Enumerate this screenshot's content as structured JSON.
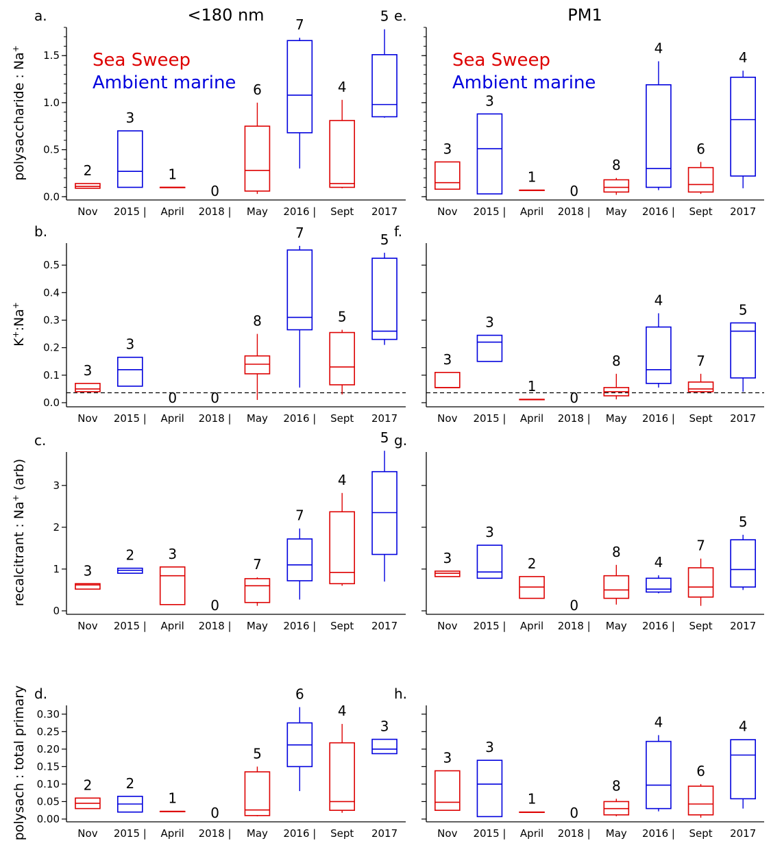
{
  "colors": {
    "sea_sweep": "#dd0000",
    "ambient_marine": "#0000dd"
  },
  "chart_data": [
    {
      "id": "a",
      "type": "box",
      "letter": "a.",
      "column_title": "<180 nm",
      "ylabel": "polysaccharide : Na+",
      "ylim": [
        -0.02,
        1.8
      ],
      "yticks": [
        0.0,
        0.5,
        1.0,
        1.5
      ],
      "ytick_labels": [
        "0.0",
        "0.5",
        "1.0",
        "1.5"
      ],
      "minor_ticks": true,
      "ref_line": null,
      "legend": {
        "show": true,
        "entries": [
          "Sea Sweep",
          "Ambient marine"
        ],
        "placement": "top-left"
      },
      "categories": [
        "Nov",
        "2015 |",
        "April",
        "2018 |",
        "May",
        "2016 |",
        "Sept",
        "2017"
      ],
      "boxes": [
        {
          "series": "Sea Sweep",
          "count": "2",
          "whisker_low": 0.09,
          "q1": 0.09,
          "median": 0.11,
          "q3": 0.14,
          "whisker_high": 0.14
        },
        {
          "series": "Ambient marine",
          "count": "3",
          "whisker_low": 0.1,
          "q1": 0.1,
          "median": 0.27,
          "q3": 0.7,
          "whisker_high": 0.7
        },
        {
          "series": "Sea Sweep",
          "count": "1",
          "whisker_low": 0.1,
          "q1": 0.1,
          "median": 0.1,
          "q3": 0.1,
          "whisker_high": 0.1
        },
        {
          "series": "Ambient marine",
          "count": "0",
          "whisker_low": null,
          "q1": null,
          "median": null,
          "q3": null,
          "whisker_high": null
        },
        {
          "series": "Sea Sweep",
          "count": "6",
          "whisker_low": 0.03,
          "q1": 0.06,
          "median": 0.28,
          "q3": 0.75,
          "whisker_high": 1.0
        },
        {
          "series": "Ambient marine",
          "count": "7",
          "whisker_low": 0.3,
          "q1": 0.68,
          "median": 1.08,
          "q3": 1.66,
          "whisker_high": 1.69
        },
        {
          "series": "Sea Sweep",
          "count": "4",
          "whisker_low": 0.09,
          "q1": 0.1,
          "median": 0.14,
          "q3": 0.81,
          "whisker_high": 1.03
        },
        {
          "series": "Ambient marine",
          "count": "5",
          "whisker_low": 0.84,
          "q1": 0.85,
          "median": 0.98,
          "q3": 1.51,
          "whisker_high": 1.78
        }
      ]
    },
    {
      "id": "e",
      "type": "box",
      "letter": "e.",
      "column_title": "PM1",
      "ylabel": "",
      "ylim": [
        -0.02,
        1.8
      ],
      "yticks": [
        0.0,
        0.5,
        1.0,
        1.5
      ],
      "ytick_labels": [],
      "minor_ticks": true,
      "ref_line": null,
      "legend": {
        "show": true,
        "entries": [
          "Sea Sweep",
          "Ambient marine"
        ],
        "placement": "top-left"
      },
      "categories": [
        "Nov",
        "2015 |",
        "April",
        "2018 |",
        "May",
        "2016 |",
        "Sept",
        "2017"
      ],
      "boxes": [
        {
          "series": "Sea Sweep",
          "count": "3",
          "whisker_low": 0.08,
          "q1": 0.08,
          "median": 0.15,
          "q3": 0.37,
          "whisker_high": 0.37
        },
        {
          "series": "Ambient marine",
          "count": "3",
          "whisker_low": 0.03,
          "q1": 0.03,
          "median": 0.51,
          "q3": 0.88,
          "whisker_high": 0.88
        },
        {
          "series": "Sea Sweep",
          "count": "1",
          "whisker_low": 0.07,
          "q1": 0.07,
          "median": 0.07,
          "q3": 0.07,
          "whisker_high": 0.07
        },
        {
          "series": "Ambient marine",
          "count": "0",
          "whisker_low": null,
          "q1": null,
          "median": null,
          "q3": null,
          "whisker_high": null
        },
        {
          "series": "Sea Sweep",
          "count": "8",
          "whisker_low": 0.02,
          "q1": 0.05,
          "median": 0.1,
          "q3": 0.18,
          "whisker_high": 0.2
        },
        {
          "series": "Ambient marine",
          "count": "4",
          "whisker_low": 0.07,
          "q1": 0.1,
          "median": 0.3,
          "q3": 1.19,
          "whisker_high": 1.44
        },
        {
          "series": "Sea Sweep",
          "count": "6",
          "whisker_low": 0.03,
          "q1": 0.05,
          "median": 0.13,
          "q3": 0.31,
          "whisker_high": 0.37
        },
        {
          "series": "Ambient marine",
          "count": "4",
          "whisker_low": 0.09,
          "q1": 0.22,
          "median": 0.82,
          "q3": 1.27,
          "whisker_high": 1.34
        }
      ]
    },
    {
      "id": "b",
      "type": "box",
      "letter": "b.",
      "column_title": "",
      "ylabel": "K+:Na+",
      "ylim": [
        -0.01,
        0.58
      ],
      "yticks": [
        0.0,
        0.1,
        0.2,
        0.3,
        0.4,
        0.5
      ],
      "ytick_labels": [
        "0.0",
        "0.1",
        "0.2",
        "0.3",
        "0.4",
        "0.5"
      ],
      "minor_ticks": false,
      "ref_line": 0.036,
      "legend": {
        "show": false,
        "entries": [],
        "placement": ""
      },
      "categories": [
        "Nov",
        "2015 |",
        "April",
        "2018 |",
        "May",
        "2016 |",
        "Sept",
        "2017"
      ],
      "boxes": [
        {
          "series": "Sea Sweep",
          "count": "3",
          "whisker_low": 0.04,
          "q1": 0.04,
          "median": 0.05,
          "q3": 0.07,
          "whisker_high": 0.07
        },
        {
          "series": "Ambient marine",
          "count": "3",
          "whisker_low": 0.06,
          "q1": 0.06,
          "median": 0.12,
          "q3": 0.165,
          "whisker_high": 0.165
        },
        {
          "series": "Sea Sweep",
          "count": "0",
          "whisker_low": null,
          "q1": null,
          "median": null,
          "q3": null,
          "whisker_high": null
        },
        {
          "series": "Ambient marine",
          "count": "0",
          "whisker_low": null,
          "q1": null,
          "median": null,
          "q3": null,
          "whisker_high": null
        },
        {
          "series": "Sea Sweep",
          "count": "8",
          "whisker_low": 0.01,
          "q1": 0.105,
          "median": 0.14,
          "q3": 0.17,
          "whisker_high": 0.25
        },
        {
          "series": "Ambient marine",
          "count": "7",
          "whisker_low": 0.055,
          "q1": 0.265,
          "median": 0.31,
          "q3": 0.555,
          "whisker_high": 0.57
        },
        {
          "series": "Sea Sweep",
          "count": "5",
          "whisker_low": 0.03,
          "q1": 0.065,
          "median": 0.13,
          "q3": 0.255,
          "whisker_high": 0.265
        },
        {
          "series": "Ambient marine",
          "count": "5",
          "whisker_low": 0.21,
          "q1": 0.23,
          "median": 0.26,
          "q3": 0.525,
          "whisker_high": 0.545
        }
      ]
    },
    {
      "id": "f",
      "type": "box",
      "letter": "f.",
      "column_title": "",
      "ylabel": "",
      "ylim": [
        -0.01,
        0.58
      ],
      "yticks": [
        0.0,
        0.1,
        0.2,
        0.3,
        0.4,
        0.5
      ],
      "ytick_labels": [],
      "minor_ticks": false,
      "ref_line": 0.036,
      "legend": {
        "show": false,
        "entries": [],
        "placement": ""
      },
      "categories": [
        "Nov",
        "2015 |",
        "April",
        "2018 |",
        "May",
        "2016 |",
        "Sept",
        "2017"
      ],
      "boxes": [
        {
          "series": "Sea Sweep",
          "count": "3",
          "whisker_low": 0.055,
          "q1": 0.055,
          "median": 0.055,
          "q3": 0.11,
          "whisker_high": 0.11
        },
        {
          "series": "Ambient marine",
          "count": "3",
          "whisker_low": 0.15,
          "q1": 0.15,
          "median": 0.22,
          "q3": 0.245,
          "whisker_high": 0.245
        },
        {
          "series": "Sea Sweep",
          "count": "1",
          "whisker_low": 0.012,
          "q1": 0.012,
          "median": 0.012,
          "q3": 0.012,
          "whisker_high": 0.012
        },
        {
          "series": "Ambient marine",
          "count": "0",
          "whisker_low": null,
          "q1": null,
          "median": null,
          "q3": null,
          "whisker_high": null
        },
        {
          "series": "Sea Sweep",
          "count": "8",
          "whisker_low": 0.012,
          "q1": 0.025,
          "median": 0.04,
          "q3": 0.055,
          "whisker_high": 0.105
        },
        {
          "series": "Ambient marine",
          "count": "4",
          "whisker_low": 0.055,
          "q1": 0.07,
          "median": 0.12,
          "q3": 0.275,
          "whisker_high": 0.325
        },
        {
          "series": "Sea Sweep",
          "count": "7",
          "whisker_low": 0.035,
          "q1": 0.04,
          "median": 0.05,
          "q3": 0.075,
          "whisker_high": 0.105
        },
        {
          "series": "Ambient marine",
          "count": "5",
          "whisker_low": 0.04,
          "q1": 0.09,
          "median": 0.26,
          "q3": 0.29,
          "whisker_high": 0.29
        }
      ]
    },
    {
      "id": "c",
      "type": "box",
      "letter": "c.",
      "column_title": "",
      "ylabel": "recalcitrant : Na+ (arb)",
      "ylim": [
        -0.05,
        3.8
      ],
      "yticks": [
        0,
        1,
        2,
        3
      ],
      "ytick_labels": [
        "0",
        "1",
        "2",
        "3"
      ],
      "minor_ticks": false,
      "ref_line": null,
      "legend": {
        "show": false,
        "entries": [],
        "placement": ""
      },
      "categories": [
        "Nov",
        "2015 |",
        "April",
        "2018 |",
        "May",
        "2016 |",
        "Sept",
        "2017"
      ],
      "boxes": [
        {
          "series": "Sea Sweep",
          "count": "3",
          "whisker_low": 0.52,
          "q1": 0.52,
          "median": 0.62,
          "q3": 0.65,
          "whisker_high": 0.65
        },
        {
          "series": "Ambient marine",
          "count": "2",
          "whisker_low": 0.9,
          "q1": 0.9,
          "median": 0.97,
          "q3": 1.02,
          "whisker_high": 1.02
        },
        {
          "series": "Sea Sweep",
          "count": "3",
          "whisker_low": 0.15,
          "q1": 0.15,
          "median": 0.84,
          "q3": 1.05,
          "whisker_high": 1.05
        },
        {
          "series": "Ambient marine",
          "count": "0",
          "whisker_low": null,
          "q1": null,
          "median": null,
          "q3": null,
          "whisker_high": null
        },
        {
          "series": "Sea Sweep",
          "count": "7",
          "whisker_low": 0.12,
          "q1": 0.2,
          "median": 0.6,
          "q3": 0.77,
          "whisker_high": 0.8
        },
        {
          "series": "Ambient marine",
          "count": "7",
          "whisker_low": 0.27,
          "q1": 0.72,
          "median": 1.1,
          "q3": 1.72,
          "whisker_high": 1.97
        },
        {
          "series": "Sea Sweep",
          "count": "4",
          "whisker_low": 0.6,
          "q1": 0.65,
          "median": 0.92,
          "q3": 2.37,
          "whisker_high": 2.82
        },
        {
          "series": "Ambient marine",
          "count": "5",
          "whisker_low": 0.7,
          "q1": 1.35,
          "median": 2.35,
          "q3": 3.33,
          "whisker_high": 3.83
        }
      ]
    },
    {
      "id": "g",
      "type": "box",
      "letter": "g.",
      "column_title": "",
      "ylabel": "",
      "ylim": [
        -0.05,
        3.8
      ],
      "yticks": [
        0,
        1,
        2,
        3
      ],
      "ytick_labels": [],
      "minor_ticks": false,
      "ref_line": null,
      "legend": {
        "show": false,
        "entries": [],
        "placement": ""
      },
      "categories": [
        "Nov",
        "2015 |",
        "April",
        "2018 |",
        "May",
        "2016 |",
        "Sept",
        "2017"
      ],
      "boxes": [
        {
          "series": "Sea Sweep",
          "count": "3",
          "whisker_low": 0.82,
          "q1": 0.82,
          "median": 0.9,
          "q3": 0.95,
          "whisker_high": 0.95
        },
        {
          "series": "Ambient marine",
          "count": "3",
          "whisker_low": 0.78,
          "q1": 0.78,
          "median": 0.93,
          "q3": 1.57,
          "whisker_high": 1.57
        },
        {
          "series": "Sea Sweep",
          "count": "2",
          "whisker_low": 0.3,
          "q1": 0.3,
          "median": 0.57,
          "q3": 0.82,
          "whisker_high": 0.82
        },
        {
          "series": "Ambient marine",
          "count": "0",
          "whisker_low": null,
          "q1": null,
          "median": null,
          "q3": null,
          "whisker_high": null
        },
        {
          "series": "Sea Sweep",
          "count": "8",
          "whisker_low": 0.15,
          "q1": 0.3,
          "median": 0.5,
          "q3": 0.84,
          "whisker_high": 1.1
        },
        {
          "series": "Ambient marine",
          "count": "4",
          "whisker_low": 0.42,
          "q1": 0.45,
          "median": 0.52,
          "q3": 0.78,
          "whisker_high": 0.85
        },
        {
          "series": "Sea Sweep",
          "count": "7",
          "whisker_low": 0.12,
          "q1": 0.33,
          "median": 0.57,
          "q3": 1.03,
          "whisker_high": 1.25
        },
        {
          "series": "Ambient marine",
          "count": "5",
          "whisker_low": 0.5,
          "q1": 0.57,
          "median": 0.99,
          "q3": 1.7,
          "whisker_high": 1.82
        }
      ]
    },
    {
      "id": "d",
      "type": "box",
      "letter": "d.",
      "column_title": "",
      "ylabel": "polysach : total primary",
      "ylim": [
        -0.004,
        0.325
      ],
      "yticks": [
        0.0,
        0.05,
        0.1,
        0.15,
        0.2,
        0.25,
        0.3
      ],
      "ytick_labels": [
        "0.00",
        "0.05",
        "0.10",
        "0.15",
        "0.20",
        "0.25",
        "0.30"
      ],
      "minor_ticks": false,
      "ref_line": null,
      "legend": {
        "show": false,
        "entries": [],
        "placement": ""
      },
      "categories": [
        "Nov",
        "2015 |",
        "April",
        "2018 |",
        "May",
        "2016 |",
        "Sept",
        "2017"
      ],
      "boxes": [
        {
          "series": "Sea Sweep",
          "count": "2",
          "whisker_low": 0.03,
          "q1": 0.03,
          "median": 0.045,
          "q3": 0.06,
          "whisker_high": 0.06
        },
        {
          "series": "Ambient marine",
          "count": "2",
          "whisker_low": 0.02,
          "q1": 0.02,
          "median": 0.043,
          "q3": 0.065,
          "whisker_high": 0.065
        },
        {
          "series": "Sea Sweep",
          "count": "1",
          "whisker_low": 0.022,
          "q1": 0.022,
          "median": 0.022,
          "q3": 0.022,
          "whisker_high": 0.022
        },
        {
          "series": "Ambient marine",
          "count": "0",
          "whisker_low": null,
          "q1": null,
          "median": null,
          "q3": null,
          "whisker_high": null
        },
        {
          "series": "Sea Sweep",
          "count": "5",
          "whisker_low": 0.008,
          "q1": 0.01,
          "median": 0.026,
          "q3": 0.135,
          "whisker_high": 0.15
        },
        {
          "series": "Ambient marine",
          "count": "6",
          "whisker_low": 0.08,
          "q1": 0.15,
          "median": 0.212,
          "q3": 0.275,
          "whisker_high": 0.32
        },
        {
          "series": "Sea Sweep",
          "count": "4",
          "whisker_low": 0.018,
          "q1": 0.025,
          "median": 0.05,
          "q3": 0.218,
          "whisker_high": 0.272
        },
        {
          "series": "Ambient marine",
          "count": "3",
          "whisker_low": 0.187,
          "q1": 0.187,
          "median": 0.2,
          "q3": 0.228,
          "whisker_high": 0.228
        }
      ]
    },
    {
      "id": "h",
      "type": "box",
      "letter": "h.",
      "column_title": "",
      "ylabel": "",
      "ylim": [
        -0.004,
        0.325
      ],
      "yticks": [
        0.0,
        0.05,
        0.1,
        0.15,
        0.2,
        0.25,
        0.3
      ],
      "ytick_labels": [],
      "minor_ticks": false,
      "ref_line": null,
      "legend": {
        "show": false,
        "entries": [],
        "placement": ""
      },
      "categories": [
        "Nov",
        "2015 |",
        "April",
        "2018 |",
        "May",
        "2016 |",
        "Sept",
        "2017"
      ],
      "boxes": [
        {
          "series": "Sea Sweep",
          "count": "3",
          "whisker_low": 0.025,
          "q1": 0.025,
          "median": 0.048,
          "q3": 0.138,
          "whisker_high": 0.138
        },
        {
          "series": "Ambient marine",
          "count": "3",
          "whisker_low": 0.007,
          "q1": 0.007,
          "median": 0.1,
          "q3": 0.168,
          "whisker_high": 0.168
        },
        {
          "series": "Sea Sweep",
          "count": "1",
          "whisker_low": 0.02,
          "q1": 0.02,
          "median": 0.02,
          "q3": 0.02,
          "whisker_high": 0.02
        },
        {
          "series": "Ambient marine",
          "count": "0",
          "whisker_low": null,
          "q1": null,
          "median": null,
          "q3": null,
          "whisker_high": null
        },
        {
          "series": "Sea Sweep",
          "count": "8",
          "whisker_low": 0.008,
          "q1": 0.012,
          "median": 0.03,
          "q3": 0.05,
          "whisker_high": 0.058
        },
        {
          "series": "Ambient marine",
          "count": "4",
          "whisker_low": 0.022,
          "q1": 0.03,
          "median": 0.097,
          "q3": 0.222,
          "whisker_high": 0.24
        },
        {
          "series": "Sea Sweep",
          "count": "6",
          "whisker_low": 0.004,
          "q1": 0.012,
          "median": 0.043,
          "q3": 0.094,
          "whisker_high": 0.1
        },
        {
          "series": "Ambient marine",
          "count": "4",
          "whisker_low": 0.03,
          "q1": 0.058,
          "median": 0.183,
          "q3": 0.227,
          "whisker_high": 0.228
        }
      ]
    }
  ]
}
